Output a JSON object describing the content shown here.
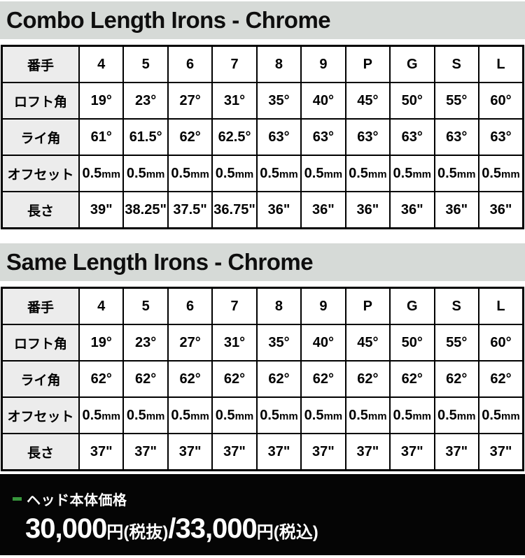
{
  "sections": [
    {
      "title": "Combo Length Irons - Chrome",
      "table": {
        "header_label": "番手",
        "columns": [
          "4",
          "5",
          "6",
          "7",
          "8",
          "9",
          "P",
          "G",
          "S",
          "L"
        ],
        "rows": [
          {
            "label": "ロフト角",
            "values": [
              "19°",
              "23°",
              "27°",
              "31°",
              "35°",
              "40°",
              "45°",
              "50°",
              "55°",
              "60°"
            ]
          },
          {
            "label": "ライ角",
            "values": [
              "61°",
              "61.5°",
              "62°",
              "62.5°",
              "63°",
              "63°",
              "63°",
              "63°",
              "63°",
              "63°"
            ]
          },
          {
            "label": "オフセット",
            "values": [
              "0.5mm",
              "0.5mm",
              "0.5mm",
              "0.5mm",
              "0.5mm",
              "0.5mm",
              "0.5mm",
              "0.5mm",
              "0.5mm",
              "0.5mm"
            ]
          },
          {
            "label": "長さ",
            "values": [
              "39\"",
              "38.25\"",
              "37.5\"",
              "36.75\"",
              "36\"",
              "36\"",
              "36\"",
              "36\"",
              "36\"",
              "36\""
            ]
          }
        ]
      }
    },
    {
      "title": "Same Length Irons - Chrome",
      "table": {
        "header_label": "番手",
        "columns": [
          "4",
          "5",
          "6",
          "7",
          "8",
          "9",
          "P",
          "G",
          "S",
          "L"
        ],
        "rows": [
          {
            "label": "ロフト角",
            "values": [
              "19°",
              "23°",
              "27°",
              "31°",
              "35°",
              "40°",
              "45°",
              "50°",
              "55°",
              "60°"
            ]
          },
          {
            "label": "ライ角",
            "values": [
              "62°",
              "62°",
              "62°",
              "62°",
              "62°",
              "62°",
              "62°",
              "62°",
              "62°",
              "62°"
            ]
          },
          {
            "label": "オフセット",
            "values": [
              "0.5mm",
              "0.5mm",
              "0.5mm",
              "0.5mm",
              "0.5mm",
              "0.5mm",
              "0.5mm",
              "0.5mm",
              "0.5mm",
              "0.5mm"
            ]
          },
          {
            "label": "長さ",
            "values": [
              "37\"",
              "37\"",
              "37\"",
              "37\"",
              "37\"",
              "37\"",
              "37\"",
              "37\"",
              "37\"",
              "37\""
            ]
          }
        ]
      }
    }
  ],
  "footer": {
    "label": "ヘッド本体価格",
    "price_parts": [
      {
        "t": "30,000",
        "s": "num"
      },
      {
        "t": "円",
        "s": "mid"
      },
      {
        "t": "(税抜)",
        "s": "mid"
      },
      {
        "t": "/",
        "s": "num"
      },
      {
        "t": "33,000",
        "s": "num"
      },
      {
        "t": "円",
        "s": "mid"
      },
      {
        "t": "(税込)",
        "s": "mid"
      }
    ],
    "colors": {
      "accent_green": "#37963c",
      "footer_bg": "#050505",
      "band_gray": "#d6dad7"
    }
  }
}
